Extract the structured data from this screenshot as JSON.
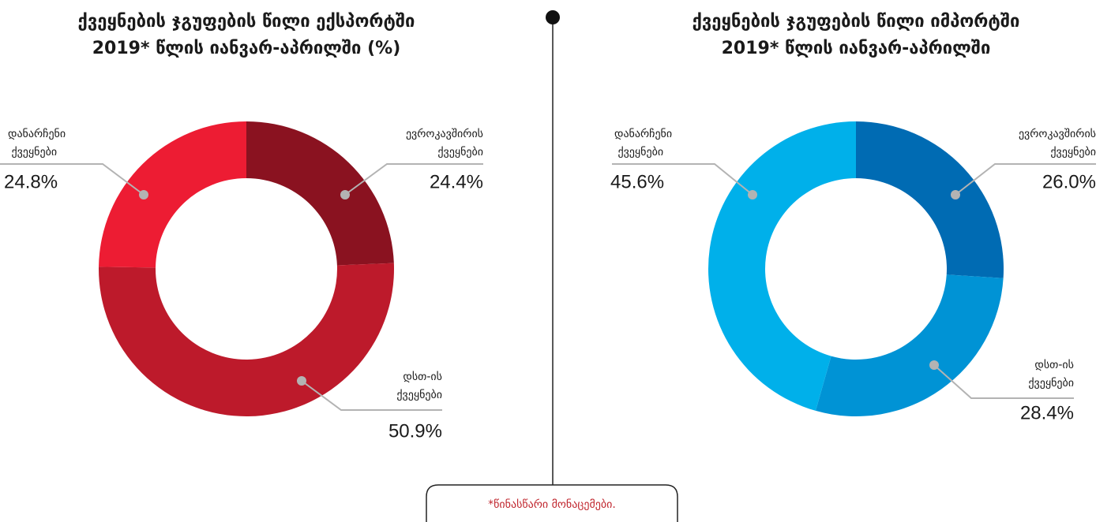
{
  "chart_data": [
    {
      "type": "donut",
      "title": "ქვეყნების ჯგუფების წილი ექსპორტში",
      "subtitle": "2019* წლის იანვარ-აპრილში (%)",
      "categories": [
        "ევროკავშირის ქვეყნები",
        "დსთ-ის ქვეყნები",
        "დანარჩენი ქვეყნები"
      ],
      "values": [
        24.4,
        50.9,
        24.8
      ],
      "value_labels": [
        "24.4%",
        "50.9%",
        "24.8%"
      ],
      "colors": [
        "#8a1220",
        "#bd1a2b",
        "#ed1c33"
      ]
    },
    {
      "type": "donut",
      "title": "ქვეყნების ჯგუფების წილი იმპორტში",
      "subtitle": "2019* წლის იანვარ-აპრილში",
      "categories": [
        "ევროკავშირის ქვეყნები",
        "დსთ-ის ქვეყნები",
        "დანარჩენი ქვეყნები"
      ],
      "values": [
        26.0,
        28.4,
        45.6
      ],
      "value_labels": [
        "26.0%",
        "28.4%",
        "45.6%"
      ],
      "colors": [
        "#006bb3",
        "#0093d5",
        "#00b0ea"
      ]
    }
  ],
  "footnote": "*წინასწარი მონაცემები."
}
